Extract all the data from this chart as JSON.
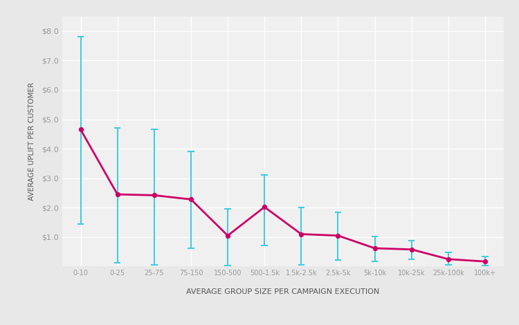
{
  "categories": [
    "0-10",
    "0-25",
    "25-75",
    "75-150",
    "150-500",
    "500-1.5k",
    "1.5k-2.5k",
    "2.5k-5k",
    "5k-10k",
    "10k-25k",
    "25k-100k",
    "100k+"
  ],
  "values": [
    4.65,
    2.45,
    2.42,
    2.28,
    1.05,
    2.02,
    1.1,
    1.05,
    0.62,
    0.58,
    0.25,
    0.17
  ],
  "err_upper": [
    7.8,
    4.7,
    4.65,
    3.9,
    1.95,
    3.1,
    2.0,
    1.85,
    1.02,
    0.88,
    0.47,
    0.33
  ],
  "err_lower": [
    1.45,
    0.12,
    0.05,
    0.62,
    0.03,
    0.72,
    0.05,
    0.22,
    0.18,
    0.24,
    0.06,
    0.04
  ],
  "line_color": "#cc0066",
  "err_color": "#44ccdd",
  "marker_color": "#cc0066",
  "bg_color": "#e8e8e8",
  "plot_bg_color": "#f0f0f0",
  "grid_color": "#ffffff",
  "tick_label_color": "#999999",
  "axis_label_color": "#555555",
  "ylabel": "AVERAGE UPLIFT PER CUSTOMER",
  "xlabel": "AVERAGE GROUP SIZE PER CAMPAIGN EXECUTION",
  "ylim": [
    0,
    8.5
  ],
  "yticks": [
    0,
    1.0,
    2.0,
    3.0,
    4.0,
    5.0,
    6.0,
    7.0,
    8.0
  ],
  "ytick_labels": [
    "",
    "$1.0",
    "$2.0",
    "$3.0",
    "$4.0",
    "$5.0",
    "$6.0",
    "$7.0",
    "$8.0"
  ]
}
